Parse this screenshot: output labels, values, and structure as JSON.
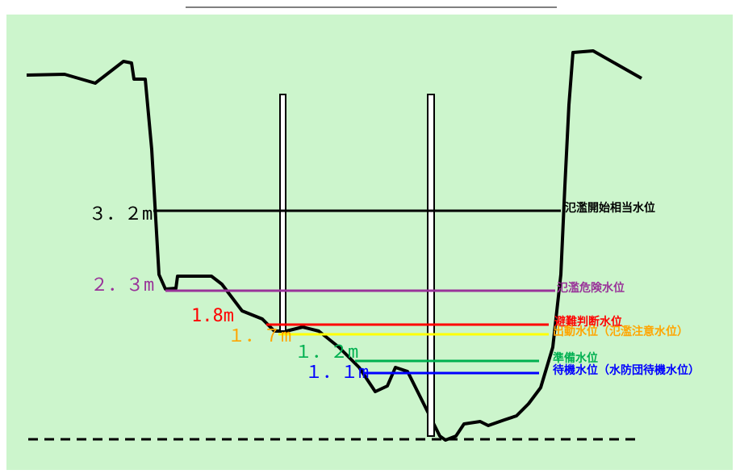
{
  "levels": [
    {
      "value_label": "３．２m",
      "name": "氾濫開始相当水位",
      "color": "#000000"
    },
    {
      "value_label": "２．３m",
      "name": "氾濫危険水位",
      "color": "#993399"
    },
    {
      "value_label": "1.8m",
      "name": "避難判断水位",
      "color": "#ff0000"
    },
    {
      "value_label": "１．７m",
      "name": "出動水位（氾濫注意水位）",
      "color": "#ffa500",
      "line_color": "#ffff00"
    },
    {
      "value_label": "１．２m",
      "name": "準備水位",
      "color": "#00b050"
    },
    {
      "value_label": "１．１m",
      "name": "待機水位（水防団待機水位）",
      "color": "#0000ff"
    }
  ]
}
